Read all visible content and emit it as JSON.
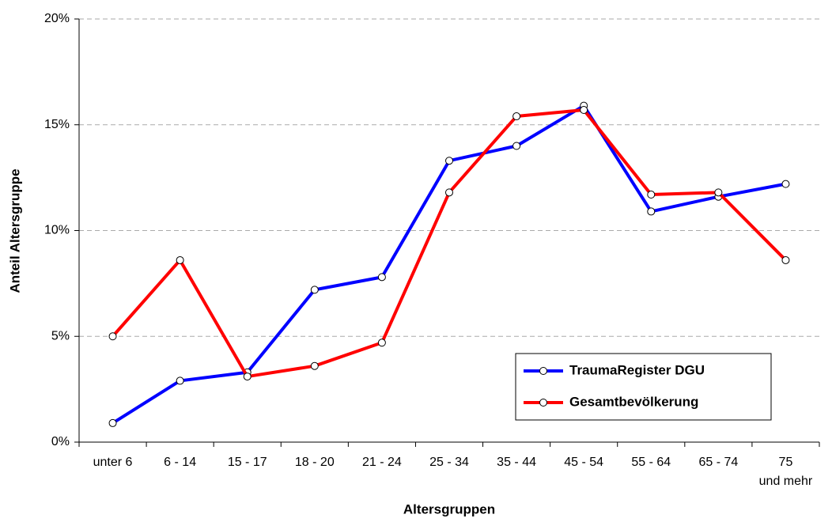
{
  "chart_data": {
    "type": "line",
    "x_label": "Altersgruppen",
    "y_label": "Anteil Altersgruppe",
    "categories": [
      "unter 6",
      "6 - 14",
      "15 - 17",
      "18 - 20",
      "21 - 24",
      "25 - 34",
      "35 - 44",
      "45 - 54",
      "55 - 64",
      "65 - 74",
      "75 und mehr"
    ],
    "series": [
      {
        "name": "TraumaRegister DGU",
        "color": "#0000ff",
        "values": [
          0.9,
          2.9,
          3.3,
          7.2,
          7.8,
          13.3,
          14.0,
          15.9,
          10.9,
          11.6,
          12.2
        ]
      },
      {
        "name": "Gesamtbevölkerung",
        "color": "#ff0000",
        "values": [
          5.0,
          8.6,
          3.1,
          3.6,
          4.7,
          11.8,
          15.4,
          15.7,
          11.7,
          11.8,
          8.6
        ]
      }
    ],
    "ylim": [
      0,
      20
    ],
    "yticks": [
      {
        "value": 0,
        "label": "0%"
      },
      {
        "value": 5,
        "label": "5%"
      },
      {
        "value": 10,
        "label": "10%"
      },
      {
        "value": 15,
        "label": "15%"
      },
      {
        "value": 20,
        "label": "20%"
      }
    ],
    "grid": true,
    "legend": "lower right"
  }
}
